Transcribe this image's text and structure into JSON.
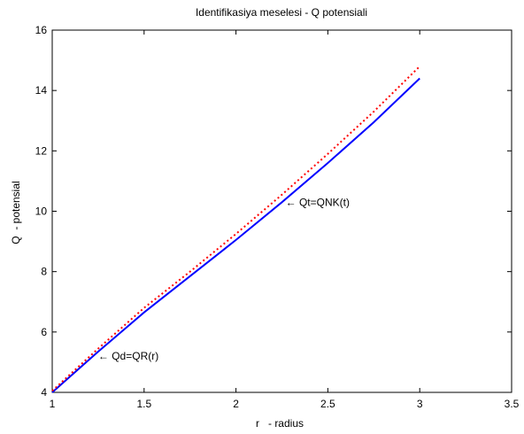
{
  "chart_data": {
    "type": "line",
    "title": "Identifikasiya meselesi - Q potensiali",
    "xlabel": "r   - radius",
    "ylabel": "Q  - potensial",
    "xlim": [
      1,
      3.5
    ],
    "ylim": [
      4,
      16
    ],
    "xticks": [
      1,
      1.5,
      2,
      2.5,
      3,
      3.5
    ],
    "yticks": [
      4,
      6,
      8,
      10,
      12,
      14,
      16
    ],
    "xtick_labels": [
      "1",
      "1.5",
      "2",
      "2.5",
      "3",
      "3.5"
    ],
    "ytick_labels": [
      "4",
      "6",
      "8",
      "10",
      "12",
      "14",
      "16"
    ],
    "grid": false,
    "series": [
      {
        "style": "solid",
        "color": "#0000ff",
        "x": [
          1.0,
          1.25,
          1.5,
          1.75,
          2.0,
          2.25,
          2.5,
          2.75,
          3.0
        ],
        "y": [
          4.0,
          5.35,
          6.65,
          7.85,
          9.05,
          10.3,
          11.6,
          12.95,
          14.4
        ]
      },
      {
        "style": "dotted",
        "color": "#ff0000",
        "x": [
          1.0,
          1.25,
          1.5,
          1.75,
          2.0,
          2.25,
          2.5,
          2.75,
          3.0
        ],
        "y": [
          4.05,
          5.45,
          6.8,
          8.0,
          9.25,
          10.55,
          11.9,
          13.3,
          14.8
        ]
      }
    ],
    "annotations": [
      {
        "text": "← Qt=QNK(t)",
        "x": 2.27,
        "y": 10.3
      },
      {
        "text": "← Qd=QR(r)",
        "x": 1.25,
        "y": 5.2
      }
    ]
  }
}
